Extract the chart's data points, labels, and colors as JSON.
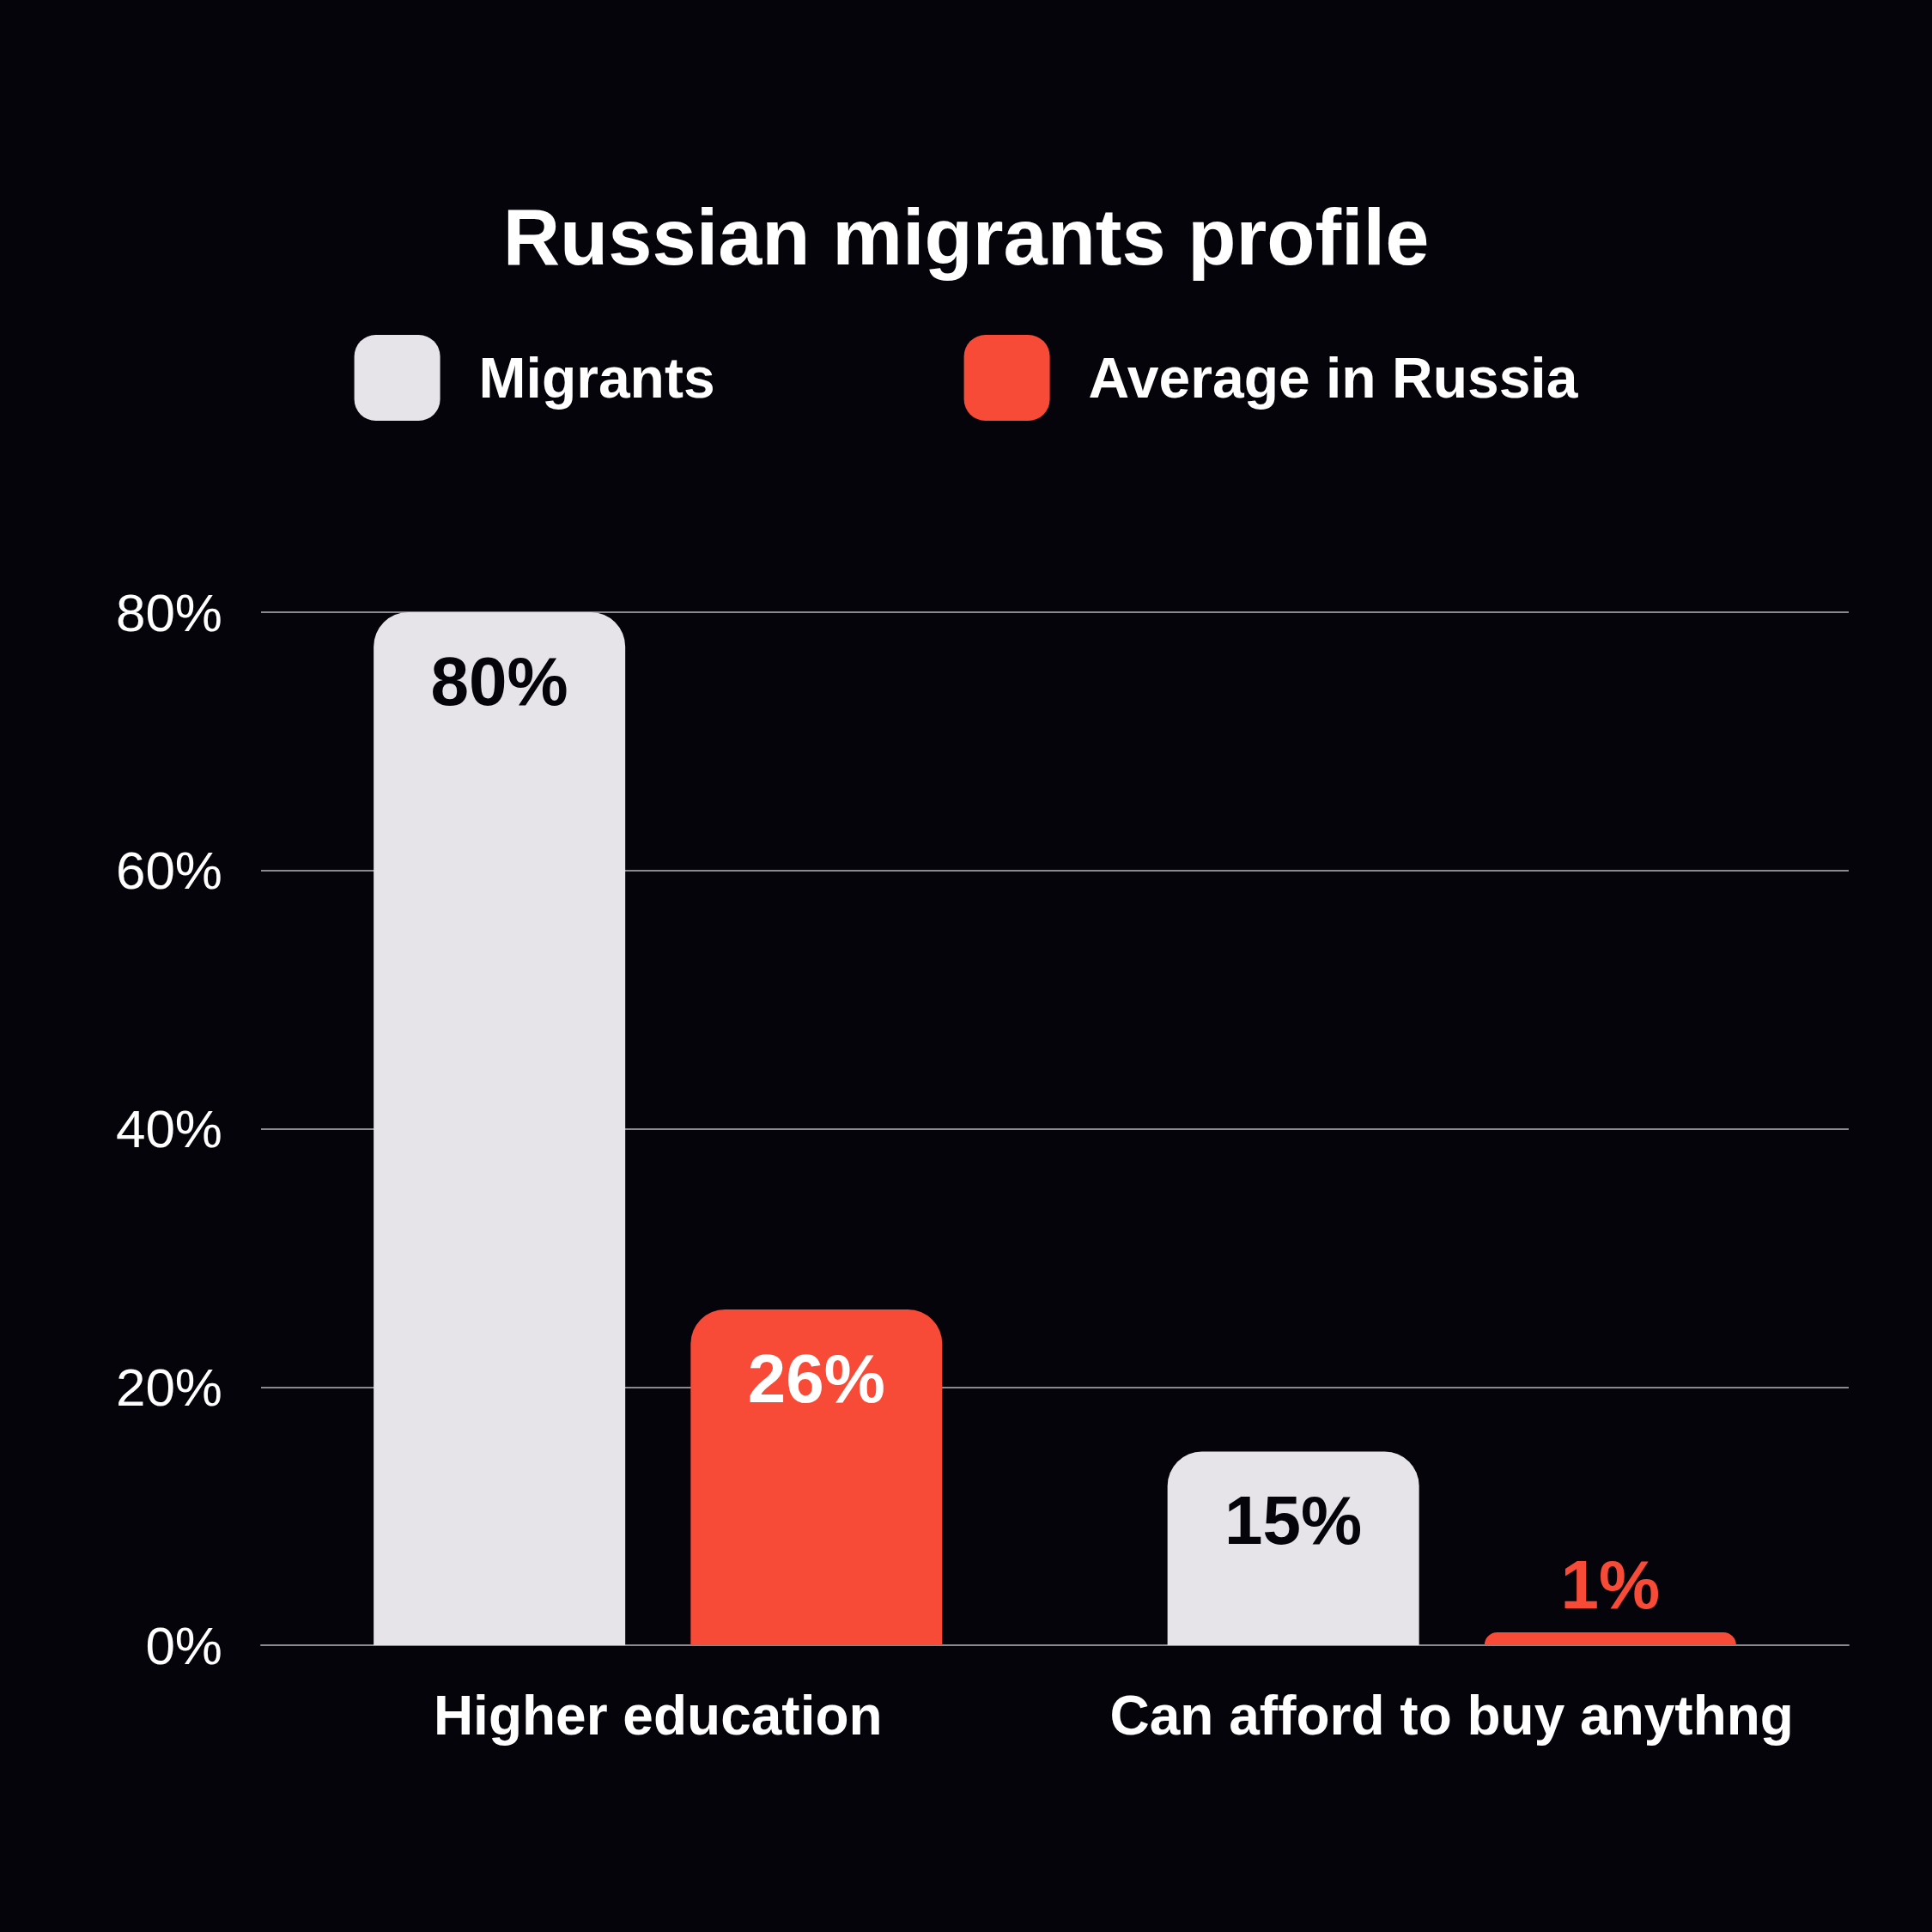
{
  "chart_data": {
    "type": "bar",
    "title": "Russian migrants profile",
    "categories": [
      "Higher education",
      "Can afford to buy anythng"
    ],
    "series": [
      {
        "name": "Migrants",
        "color": "#e6e4e8",
        "values": [
          80,
          15
        ],
        "value_labels": [
          "80%",
          "15%"
        ]
      },
      {
        "name": "Average in Russia",
        "color": "#f74b37",
        "values": [
          26,
          1
        ],
        "value_labels": [
          "26%",
          "1%"
        ]
      }
    ],
    "ylim": [
      0,
      80
    ],
    "yticks": [
      {
        "value": 0,
        "label": "0%"
      },
      {
        "value": 20,
        "label": "20%"
      },
      {
        "value": 40,
        "label": "40%"
      },
      {
        "value": 60,
        "label": "60%"
      },
      {
        "value": 80,
        "label": "80%"
      }
    ],
    "grid": "y",
    "legend": "top"
  }
}
